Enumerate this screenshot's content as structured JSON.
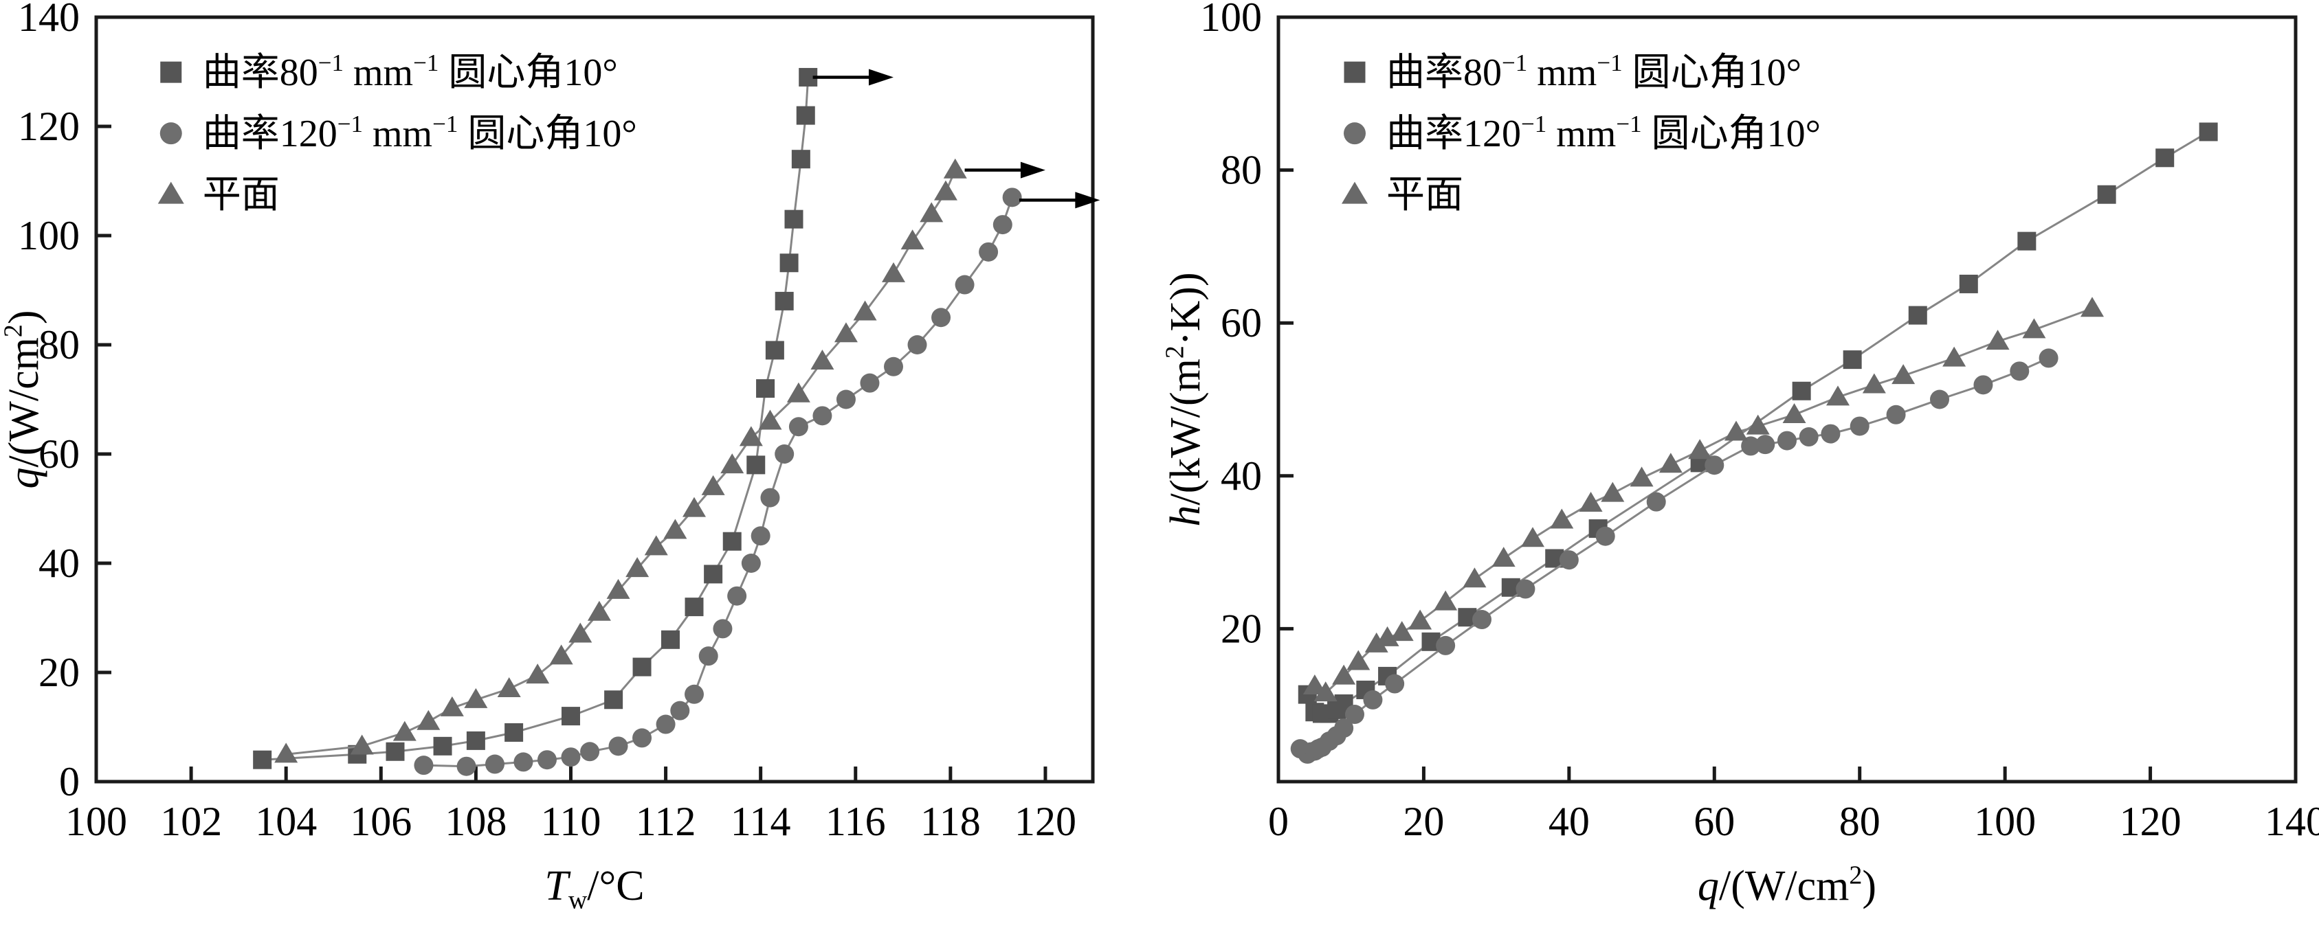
{
  "page": {
    "background": "#ffffff"
  },
  "colors": {
    "axis": "#1a1a1a",
    "text": "#000000",
    "line": "#858585",
    "arrow": "#000000",
    "marker_square": "#555555",
    "marker_circle": "#6e6e6e",
    "marker_triangle": "#696969"
  },
  "legend": {
    "items": [
      {
        "marker": "square",
        "parts": [
          {
            "t": "曲率80"
          },
          {
            "t": "−1",
            "sup": true
          },
          {
            "t": " mm"
          },
          {
            "t": "−1",
            "sup": true
          },
          {
            "t": "  圆心角10°"
          }
        ]
      },
      {
        "marker": "circle",
        "parts": [
          {
            "t": "曲率120"
          },
          {
            "t": "−1",
            "sup": true
          },
          {
            "t": " mm"
          },
          {
            "t": "−1",
            "sup": true
          },
          {
            "t": "  圆心角10°"
          }
        ]
      },
      {
        "marker": "triangle",
        "parts": [
          {
            "t": "平面"
          }
        ]
      }
    ]
  },
  "chart_data": [
    {
      "type": "scatter",
      "title": "",
      "xlabel": "Tw/°C",
      "ylabel": "q/(W/cm2)",
      "xlabel_parts": [
        {
          "t": "T",
          "italic": true
        },
        {
          "t": "w",
          "sub": true
        },
        {
          "t": "/°C"
        }
      ],
      "ylabel_parts": [
        {
          "t": "q",
          "italic": true
        },
        {
          "t": "/(W/cm"
        },
        {
          "t": "2",
          "sup": true
        },
        {
          "t": ")"
        }
      ],
      "xlim": [
        100,
        121
      ],
      "ylim": [
        0,
        140
      ],
      "xticks": [
        100,
        102,
        104,
        106,
        108,
        110,
        112,
        114,
        116,
        118,
        120
      ],
      "yticks": [
        0,
        20,
        40,
        60,
        80,
        100,
        120,
        140
      ],
      "grid": false,
      "legend_pos": {
        "fx": 0.075,
        "rows_fy": [
          0.928,
          0.848,
          0.768
        ]
      },
      "series": [
        {
          "name": "曲率80−1 mm−1 圆心角10°",
          "marker": "square",
          "points": [
            [
              103.5,
              4
            ],
            [
              105.5,
              5
            ],
            [
              106.3,
              5.5
            ],
            [
              107.3,
              6.5
            ],
            [
              108.0,
              7.5
            ],
            [
              108.8,
              9
            ],
            [
              110.0,
              12
            ],
            [
              110.9,
              15
            ],
            [
              111.5,
              21
            ],
            [
              112.1,
              26
            ],
            [
              112.6,
              32
            ],
            [
              113.0,
              38
            ],
            [
              113.4,
              44
            ],
            [
              113.9,
              58
            ],
            [
              114.1,
              72
            ],
            [
              114.3,
              79
            ],
            [
              114.5,
              88
            ],
            [
              114.6,
              95
            ],
            [
              114.7,
              103
            ],
            [
              114.85,
              114
            ],
            [
              114.95,
              122
            ],
            [
              115.0,
              129
            ]
          ]
        },
        {
          "name": "曲率120−1 mm−1 圆心角10°",
          "marker": "circle",
          "points": [
            [
              106.9,
              3
            ],
            [
              107.8,
              2.8
            ],
            [
              108.4,
              3.2
            ],
            [
              109.0,
              3.6
            ],
            [
              109.5,
              4
            ],
            [
              110.0,
              4.5
            ],
            [
              110.4,
              5.5
            ],
            [
              111.0,
              6.5
            ],
            [
              111.5,
              8
            ],
            [
              112.0,
              10.5
            ],
            [
              112.3,
              13
            ],
            [
              112.6,
              16
            ],
            [
              112.9,
              23
            ],
            [
              113.2,
              28
            ],
            [
              113.5,
              34
            ],
            [
              113.8,
              40
            ],
            [
              114.0,
              45
            ],
            [
              114.2,
              52
            ],
            [
              114.5,
              60
            ],
            [
              114.8,
              65
            ],
            [
              115.3,
              67
            ],
            [
              115.8,
              70
            ],
            [
              116.3,
              73
            ],
            [
              116.8,
              76
            ],
            [
              117.3,
              80
            ],
            [
              117.8,
              85
            ],
            [
              118.3,
              91
            ],
            [
              118.8,
              97
            ],
            [
              119.1,
              102
            ],
            [
              119.3,
              107
            ]
          ]
        },
        {
          "name": "平面",
          "marker": "triangle",
          "points": [
            [
              104.0,
              5
            ],
            [
              105.6,
              6.5
            ],
            [
              106.5,
              9
            ],
            [
              107.0,
              11
            ],
            [
              107.5,
              13.5
            ],
            [
              108.0,
              15
            ],
            [
              108.7,
              17
            ],
            [
              109.3,
              19.5
            ],
            [
              109.8,
              23
            ],
            [
              110.2,
              27
            ],
            [
              110.6,
              31
            ],
            [
              111.0,
              35
            ],
            [
              111.4,
              39
            ],
            [
              111.8,
              43
            ],
            [
              112.2,
              46
            ],
            [
              112.6,
              50
            ],
            [
              113.0,
              54
            ],
            [
              113.4,
              58
            ],
            [
              113.8,
              63
            ],
            [
              114.2,
              66
            ],
            [
              114.8,
              71
            ],
            [
              115.3,
              77
            ],
            [
              115.8,
              82
            ],
            [
              116.2,
              86
            ],
            [
              116.8,
              93
            ],
            [
              117.2,
              99
            ],
            [
              117.6,
              104
            ],
            [
              117.9,
              108
            ],
            [
              118.1,
              112
            ]
          ]
        }
      ],
      "arrows": [
        {
          "x": 115.1,
          "y": 129,
          "dx": 1.7
        },
        {
          "x": 118.3,
          "y": 112,
          "dx": 1.7
        },
        {
          "x": 119.45,
          "y": 106.5,
          "dx": 1.7
        }
      ]
    },
    {
      "type": "scatter",
      "title": "",
      "xlabel": "q/(W/cm2)",
      "ylabel": "h/(kW/(m2·K))",
      "xlabel_parts": [
        {
          "t": "q",
          "italic": true
        },
        {
          "t": "/(W/cm"
        },
        {
          "t": "2",
          "sup": true
        },
        {
          "t": ")"
        }
      ],
      "ylabel_parts": [
        {
          "t": "h",
          "italic": true
        },
        {
          "t": "/(kW/(m"
        },
        {
          "t": "2",
          "sup": true
        },
        {
          "t": "·K))"
        }
      ],
      "xlim": [
        0,
        140
      ],
      "ylim": [
        0,
        100
      ],
      "xticks": [
        0,
        20,
        40,
        60,
        80,
        100,
        120,
        140
      ],
      "yticks": [
        20,
        40,
        60,
        80,
        100
      ],
      "grid": false,
      "legend_pos": {
        "fx": 0.075,
        "rows_fy": [
          0.928,
          0.848,
          0.768
        ]
      },
      "series": [
        {
          "name": "曲率80−1 mm−1 圆心角10°",
          "marker": "square",
          "points": [
            [
              4,
              11.4
            ],
            [
              5,
              9.1
            ],
            [
              6,
              8.9
            ],
            [
              7,
              8.9
            ],
            [
              8,
              9.4
            ],
            [
              9,
              10.2
            ],
            [
              12,
              12
            ],
            [
              15,
              13.8
            ],
            [
              21,
              18.3
            ],
            [
              26,
              21.5
            ],
            [
              32,
              25.4
            ],
            [
              38,
              29.2
            ],
            [
              44,
              33.1
            ],
            [
              58,
              41.7
            ],
            [
              72,
              51.1
            ],
            [
              79,
              55.2
            ],
            [
              88,
              61
            ],
            [
              95,
              65.1
            ],
            [
              103,
              70.7
            ],
            [
              114,
              76.8
            ],
            [
              122,
              81.6
            ],
            [
              128,
              85
            ]
          ]
        },
        {
          "name": "曲率120−1 mm−1 圆心角10°",
          "marker": "circle",
          "points": [
            [
              3,
              4.3
            ],
            [
              4,
              3.6
            ],
            [
              4.5,
              3.9
            ],
            [
              5,
              4
            ],
            [
              5.5,
              4.3
            ],
            [
              6,
              4.5
            ],
            [
              7,
              5.3
            ],
            [
              8,
              6
            ],
            [
              9,
              7
            ],
            [
              10.5,
              8.8
            ],
            [
              13,
              10.7
            ],
            [
              16,
              12.8
            ],
            [
              23,
              17.8
            ],
            [
              28,
              21.2
            ],
            [
              34,
              25.2
            ],
            [
              40,
              29
            ],
            [
              45,
              32.1
            ],
            [
              52,
              36.6
            ],
            [
              60,
              41.4
            ],
            [
              65,
              43.9
            ],
            [
              67,
              44.1
            ],
            [
              70,
              44.6
            ],
            [
              73,
              45.1
            ],
            [
              76,
              45.5
            ],
            [
              80,
              46.5
            ],
            [
              85,
              48
            ],
            [
              91,
              50
            ],
            [
              97,
              51.9
            ],
            [
              102,
              53.7
            ],
            [
              106,
              55.4
            ]
          ]
        },
        {
          "name": "平面",
          "marker": "triangle",
          "points": [
            [
              5,
              12.5
            ],
            [
              6.5,
              11.6
            ],
            [
              9,
              13.8
            ],
            [
              11,
              15.7
            ],
            [
              13.5,
              18
            ],
            [
              15,
              18.8
            ],
            [
              17,
              19.5
            ],
            [
              19.5,
              21
            ],
            [
              23,
              23.5
            ],
            [
              27,
              26.5
            ],
            [
              31,
              29.2
            ],
            [
              35,
              31.8
            ],
            [
              39,
              34.2
            ],
            [
              43,
              36.4
            ],
            [
              46,
              37.7
            ],
            [
              50,
              39.7
            ],
            [
              54,
              41.5
            ],
            [
              58,
              43.3
            ],
            [
              63,
              45.7
            ],
            [
              66,
              46.5
            ],
            [
              71,
              48
            ],
            [
              77,
              50.3
            ],
            [
              82,
              51.9
            ],
            [
              86,
              53.1
            ],
            [
              93,
              55.4
            ],
            [
              99,
              57.6
            ],
            [
              104,
              59.1
            ],
            [
              112,
              61.9
            ]
          ]
        }
      ],
      "arrows": []
    }
  ]
}
